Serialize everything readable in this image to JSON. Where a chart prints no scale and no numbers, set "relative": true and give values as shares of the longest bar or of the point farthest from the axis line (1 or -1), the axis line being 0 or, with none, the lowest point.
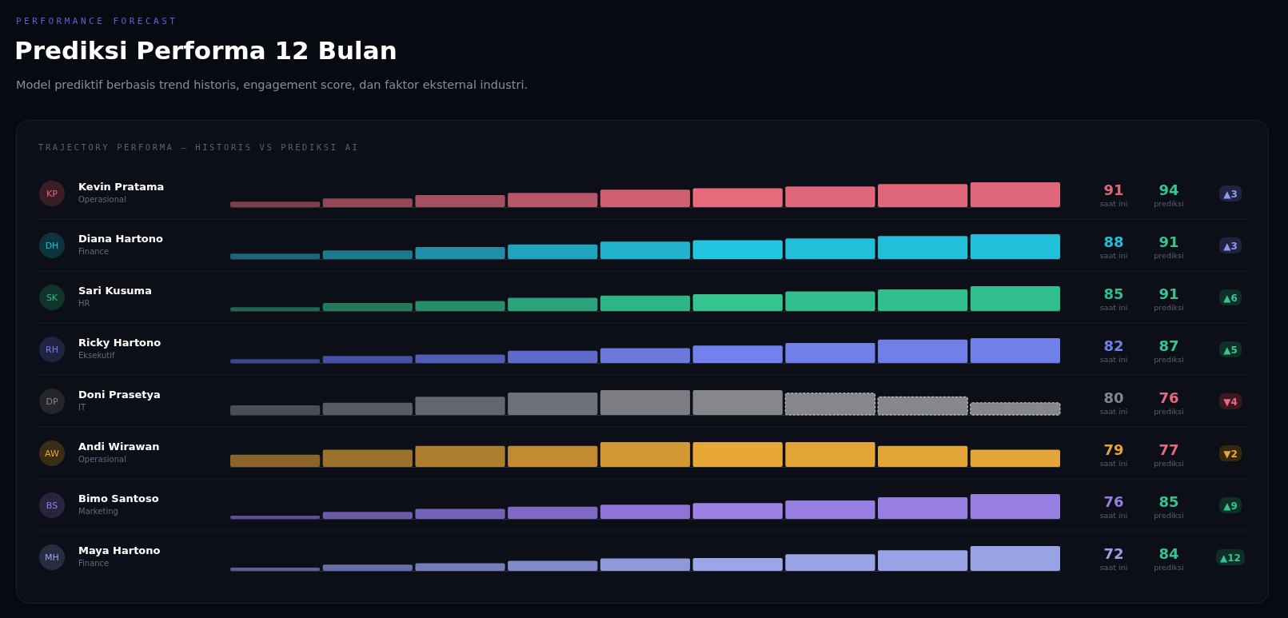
{
  "chart_data": [
    {
      "type": "other",
      "title": "Prediksi Performa 12 Bulan",
      "subtitle": "Model prediktif berbasis trend historis, engagement score, dan faktor eksternal industri.",
      "annotations": [
        "PERFORMANCE FORECAST",
        "TRAJECTORY PERFORMA — HISTORIS VS PREDIKSI AI"
      ]
    },
    {
      "type": "bar",
      "relative": true,
      "categories": [
        null,
        null,
        null,
        null,
        null,
        null,
        null,
        null,
        null
      ],
      "annotations": [
        "KP",
        "Kevin Pratama",
        "Operasional",
        "91",
        "saat ini",
        "94",
        "prediksi",
        "▲3"
      ],
      "series": [
        {
          "colors": [
            "#7c3f4d",
            "#934857",
            "#a54f5f",
            "#b8566a",
            "#d05f72",
            "#e86a7d",
            "#e0667a",
            "#e0667a",
            "#e0667a"
          ],
          "values": [
            0.22,
            0.35,
            0.48,
            0.57,
            0.7,
            0.76,
            0.83,
            0.93,
            1
          ]
        }
      ]
    },
    {
      "type": "bar",
      "relative": true,
      "categories": [
        null,
        null,
        null,
        null,
        null,
        null,
        null,
        null,
        null
      ],
      "annotations": [
        "DH",
        "Diana Hartono",
        "Finance",
        "88",
        "saat ini",
        "91",
        "prediksi",
        "▲3"
      ],
      "series": [
        {
          "colors": [
            "#1b6678",
            "#1d7a8e",
            "#1e8fa5",
            "#20a3bc",
            "#21b3cd",
            "#22c4e0",
            "#21bfd9",
            "#21bfd9",
            "#21bfd9"
          ],
          "values": [
            0.22,
            0.35,
            0.48,
            0.59,
            0.7,
            0.76,
            0.83,
            0.93,
            1
          ]
        }
      ]
    },
    {
      "type": "bar",
      "relative": true,
      "categories": [
        null,
        null,
        null,
        null,
        null,
        null,
        null,
        null,
        null
      ],
      "annotations": [
        "SK",
        "Sari Kusuma",
        "HR",
        "85",
        "saat ini",
        "91",
        "prediksi",
        "▲6"
      ],
      "series": [
        {
          "colors": [
            "#1f6650",
            "#24795c",
            "#278e6a",
            "#2aa27a",
            "#2db685",
            "#34c48f",
            "#32be8c",
            "#32be8c",
            "#32be8c"
          ],
          "values": [
            0.15,
            0.32,
            0.4,
            0.53,
            0.62,
            0.68,
            0.79,
            0.87,
            1
          ]
        }
      ]
    },
    {
      "type": "bar",
      "relative": true,
      "categories": [
        null,
        null,
        null,
        null,
        null,
        null,
        null,
        null,
        null
      ],
      "annotations": [
        "RH",
        "Ricky Hartono",
        "Eksekutif",
        "82",
        "saat ini",
        "87",
        "prediksi",
        "▲5"
      ],
      "series": [
        {
          "colors": [
            "#3d4591",
            "#4650a5",
            "#515cb7",
            "#5f6bca",
            "#6a77db",
            "#7480ee",
            "#717fe8",
            "#717fe8",
            "#717fe8"
          ],
          "values": [
            0.15,
            0.28,
            0.34,
            0.49,
            0.6,
            0.7,
            0.81,
            0.94,
            1
          ]
        }
      ]
    },
    {
      "type": "bar",
      "relative": true,
      "categories": [
        null,
        null,
        null,
        null,
        null,
        null,
        null,
        null,
        null
      ],
      "annotations": [
        "DP",
        "Doni Prasetya",
        "IT",
        "80",
        "saat ini",
        "76",
        "prediksi",
        "▼4"
      ],
      "series": [
        {
          "colors": [
            "#4a4e57",
            "#575b64",
            "#62666f",
            "#6e7178",
            "#7b7d82",
            "#86878b",
            null,
            null,
            null
          ],
          "values": [
            0.39,
            0.49,
            0.73,
            0.9,
            1,
            1,
            null,
            null,
            null
          ]
        },
        {
          "colors": [
            null,
            null,
            null,
            null,
            null,
            null,
            "#86878b",
            "#86878b",
            "#86878b"
          ],
          "line_style": "dashed",
          "values": [
            null,
            null,
            null,
            null,
            null,
            null,
            0.88,
            0.73,
            0.49
          ]
        }
      ]
    },
    {
      "type": "bar",
      "relative": true,
      "categories": [
        null,
        null,
        null,
        null,
        null,
        null,
        null,
        null,
        null
      ],
      "annotations": [
        "AW",
        "Andi Wirawan",
        "Operasional",
        "79",
        "saat ini",
        "77",
        "prediksi",
        "▼2"
      ],
      "series": [
        {
          "colors": [
            "#8a6428",
            "#9c712b",
            "#ad7e2e",
            "#c28b31",
            "#d39a33",
            "#e8a838",
            "#e3a537",
            "#e3a537",
            "#e3a537"
          ],
          "values": [
            0.49,
            0.69,
            0.85,
            0.85,
            1,
            1,
            1,
            0.85,
            0.69
          ]
        }
      ]
    },
    {
      "type": "bar",
      "relative": true,
      "categories": [
        null,
        null,
        null,
        null,
        null,
        null,
        null,
        null,
        null
      ],
      "annotations": [
        "BS",
        "Bimo Santoso",
        "Marketing",
        "76",
        "saat ini",
        "85",
        "prediksi",
        "▲9"
      ],
      "series": [
        {
          "colors": [
            "#5c4f96",
            "#6a5aa8",
            "#7462b8",
            "#8068c6",
            "#8f74d6",
            "#9d82e6",
            "#977ee1",
            "#977ee1",
            "#977ee1"
          ],
          "values": [
            0.13,
            0.28,
            0.4,
            0.49,
            0.57,
            0.64,
            0.74,
            0.87,
            1
          ]
        }
      ]
    },
    {
      "type": "bar",
      "relative": true,
      "categories": [
        null,
        null,
        null,
        null,
        null,
        null,
        null,
        null,
        null
      ],
      "annotations": [
        "MH",
        "Maya Hartono",
        "Finance",
        "72",
        "saat ini",
        "84",
        "prediksi",
        "▲12"
      ],
      "series": [
        {
          "colors": [
            "#5a5f98",
            "#686fa8",
            "#757db9",
            "#828bca",
            "#8f98d8",
            "#9ba6ea",
            "#98a3e6",
            "#98a3e6",
            "#98a3e6"
          ],
          "values": [
            0.13,
            0.25,
            0.31,
            0.4,
            0.5,
            0.52,
            0.67,
            0.83,
            1
          ]
        }
      ]
    }
  ]
}
